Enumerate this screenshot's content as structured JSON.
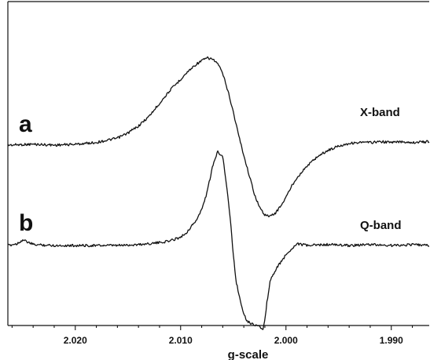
{
  "chart_data": {
    "type": "line",
    "title": "",
    "xlabel": "g-scale",
    "ylabel": "",
    "xlim": [
      2.0264,
      1.9864
    ],
    "x_reversed": true,
    "x_ticks": [
      2.02,
      2.01,
      2.0,
      1.99
    ],
    "x_tick_labels": [
      "2.020",
      "2.010",
      "2.000",
      "1.990"
    ],
    "y_ticks_shown": false,
    "grid": false,
    "legend": "none",
    "colors": {
      "line": "#111111",
      "axis": "#111111",
      "background": "#ffffff"
    },
    "series": [
      {
        "label": "a",
        "band": "X-band",
        "x": [
          2.0264,
          2.024,
          2.022,
          2.02,
          2.018,
          2.016,
          2.015,
          2.014,
          2.013,
          2.012,
          2.011,
          2.0102,
          2.0095,
          2.009,
          2.0085,
          2.008,
          2.0075,
          2.007,
          2.0065,
          2.006,
          2.0055,
          2.005,
          2.0045,
          2.004,
          2.0035,
          2.003,
          2.0025,
          2.002,
          2.0015,
          2.001,
          2.0005,
          2.0,
          1.9995,
          1.999,
          1.998,
          1.997,
          1.996,
          1.995,
          1.994,
          1.993,
          1.992,
          1.991,
          1.99,
          1.989,
          1.988,
          1.9864
        ],
        "y": [
          0.0,
          0.01,
          0.0,
          0.01,
          0.03,
          0.08,
          0.14,
          0.22,
          0.33,
          0.48,
          0.63,
          0.73,
          0.82,
          0.88,
          0.93,
          0.97,
          1.0,
          0.99,
          0.94,
          0.82,
          0.62,
          0.38,
          0.12,
          -0.12,
          -0.34,
          -0.56,
          -0.72,
          -0.8,
          -0.82,
          -0.78,
          -0.7,
          -0.6,
          -0.48,
          -0.38,
          -0.24,
          -0.13,
          -0.06,
          -0.01,
          0.02,
          0.03,
          0.03,
          0.04,
          0.03,
          0.04,
          0.03,
          0.04
        ]
      },
      {
        "label": "b",
        "band": "Q-band",
        "x": [
          2.0264,
          2.0255,
          2.025,
          2.024,
          2.022,
          2.02,
          2.018,
          2.016,
          2.014,
          2.012,
          2.011,
          2.01,
          2.0095,
          2.009,
          2.0085,
          2.008,
          2.0075,
          2.007,
          2.0065,
          2.006,
          2.0057,
          2.0053,
          2.005,
          2.0047,
          2.0043,
          2.004,
          2.0037,
          2.0033,
          2.003,
          2.0025,
          2.0022,
          2.002,
          2.0018,
          2.0015,
          2.001,
          2.0005,
          2.0,
          1.9995,
          1.999,
          1.998,
          1.996,
          1.994,
          1.992,
          1.99,
          1.988,
          1.9864
        ],
        "y": [
          0.0,
          0.02,
          0.06,
          0.01,
          0.0,
          0.0,
          0.0,
          0.0,
          0.01,
          0.03,
          0.05,
          0.09,
          0.13,
          0.2,
          0.27,
          0.38,
          0.56,
          0.82,
          1.0,
          0.95,
          0.7,
          0.3,
          -0.1,
          -0.4,
          -0.6,
          -0.72,
          -0.8,
          -0.83,
          -0.84,
          -0.86,
          -0.9,
          -0.8,
          -0.6,
          -0.38,
          -0.26,
          -0.18,
          -0.1,
          -0.04,
          0.02,
          0.0,
          0.01,
          0.0,
          0.01,
          0.0,
          0.01,
          0.0
        ]
      }
    ]
  }
}
